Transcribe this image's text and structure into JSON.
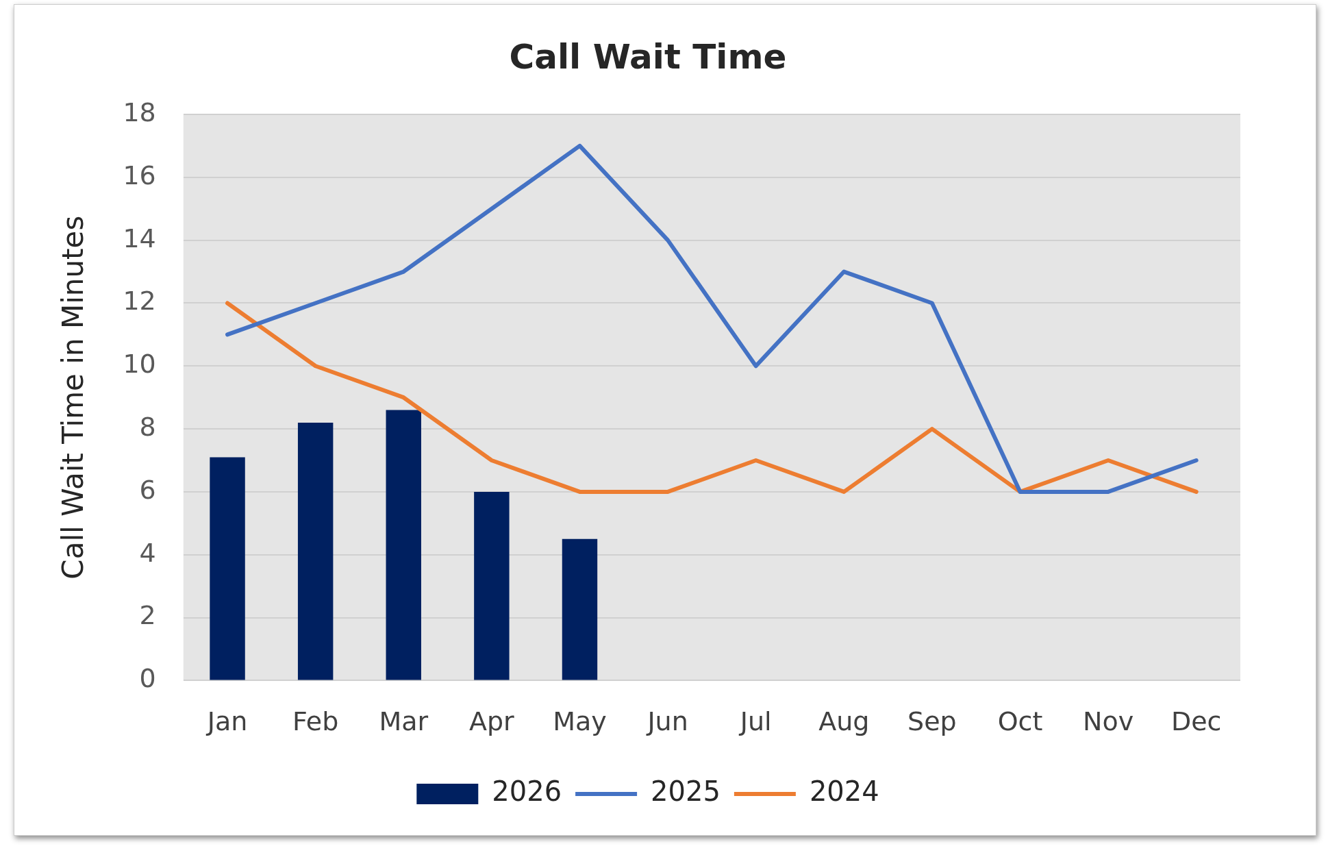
{
  "chart_data": {
    "type": "bar",
    "title": "Call Wait Time",
    "ylabel": "Call Wait Time in Minutes",
    "categories": [
      "Jan",
      "Feb",
      "Mar",
      "Apr",
      "May",
      "Jun",
      "Jul",
      "Aug",
      "Sep",
      "Oct",
      "Nov",
      "Dec"
    ],
    "series": [
      {
        "name": "2026",
        "color": "#002060",
        "values": [
          7.1,
          8.2,
          8.6,
          6.0,
          4.5,
          null,
          null,
          null,
          null,
          null,
          null,
          null
        ]
      },
      {
        "name": "2025",
        "type": "line",
        "color": "#4472c4",
        "values": [
          11,
          12,
          13,
          15,
          17,
          14,
          10,
          13,
          12,
          6,
          6,
          7
        ]
      },
      {
        "name": "2024",
        "type": "line",
        "color": "#ed7d31",
        "values": [
          12,
          10,
          9,
          7,
          6,
          6,
          7,
          6,
          8,
          6,
          7,
          6
        ]
      }
    ],
    "ylim": [
      0,
      18
    ],
    "yticks": [
      0,
      2,
      4,
      6,
      8,
      10,
      12,
      14,
      16,
      18
    ],
    "grid": "y",
    "legend": "bottom",
    "marker": "none"
  }
}
